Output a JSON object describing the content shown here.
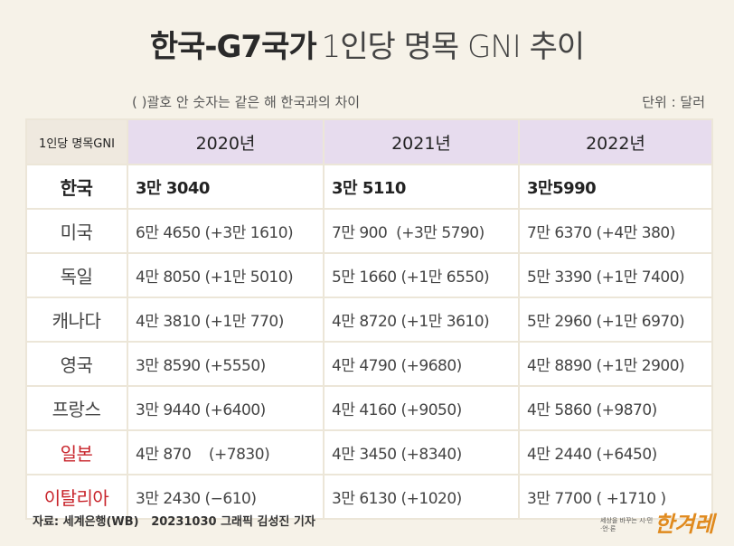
{
  "header": {
    "title_bold": "한국-G7국가",
    "title_rest": "1인당 명목 GNI 추이",
    "note": "( )괄호 안 숫자는 같은 해 한국과의 차이",
    "unit": "단위 : 달러"
  },
  "table": {
    "corner": "1인당 명목GNI",
    "columns": [
      "2020년",
      "2021년",
      "2022년"
    ],
    "rows": [
      {
        "country": "한국",
        "values": [
          "3만 3040",
          "3만 5110",
          "3만5990"
        ]
      },
      {
        "country": "미국",
        "values": [
          "6만 4650 (+3만 1610)",
          "7만 900  (+3만 5790)",
          "7만 6370 (+4만 380)"
        ]
      },
      {
        "country": "독일",
        "values": [
          "4만 8050 (+1만 5010)",
          "5만 1660 (+1만 6550)",
          "5만 3390 (+1만 7400)"
        ]
      },
      {
        "country": "캐나다",
        "values": [
          "4만 3810 (+1만 770)",
          "4만 8720 (+1만 3610)",
          "5만 2960 (+1만 6970)"
        ]
      },
      {
        "country": "영국",
        "values": [
          "3만 8590 (+5550)",
          "4만 4790 (+9680)",
          "4만 8890 (+1만 2900)"
        ]
      },
      {
        "country": "프랑스",
        "values": [
          "3만 9440 (+6400)",
          "4만 4160 (+9050)",
          "4만 5860 (+9870)"
        ]
      },
      {
        "country": "일본",
        "color": "#c8242b",
        "values": [
          "4만 870    (+7830)",
          "4만 3450 (+8340)",
          "4만 2440 (+6450)"
        ]
      },
      {
        "country": "이탈리아",
        "color": "#c8242b",
        "values": [
          "3만 2430 (−610)",
          "3만 6130 (+1020)",
          "3만 7700 ( +1710 )"
        ]
      }
    ]
  },
  "footer": {
    "source": "자료: 세계은행(WB)   20231030 그래픽 김성진 기자",
    "logo_tagline": "세상을 바꾸는 시·민·언·론",
    "logo": "한겨레"
  }
}
